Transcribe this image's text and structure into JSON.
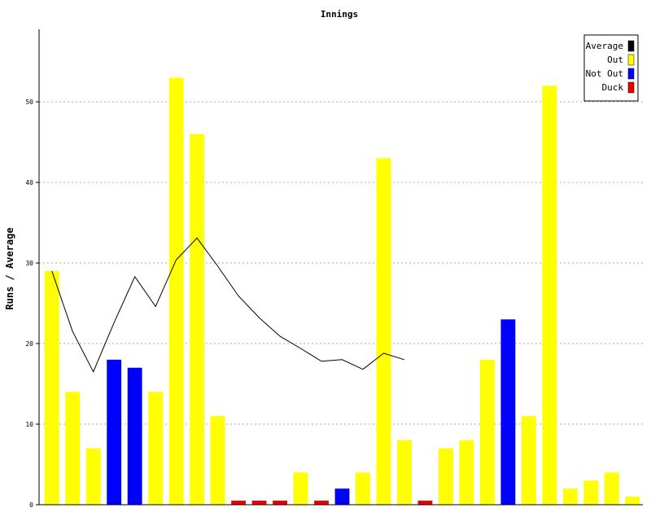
{
  "chart_data": {
    "type": "bar",
    "title": "Innings",
    "xlabel": "",
    "ylabel": "Runs / Average",
    "ylim": [
      0,
      59
    ],
    "yticks": [
      0,
      10,
      20,
      30,
      40,
      50
    ],
    "grid": "horizontal dotted",
    "legend_position": "top-right",
    "legend": [
      {
        "name": "Average",
        "color": "#000000"
      },
      {
        "name": "Out",
        "color": "#ffff00"
      },
      {
        "name": "Not Out",
        "color": "#0000ff"
      },
      {
        "name": "Duck",
        "color": "#ee0000"
      }
    ],
    "innings": [
      {
        "runs": 29,
        "status": "Out"
      },
      {
        "runs": 14,
        "status": "Out"
      },
      {
        "runs": 7,
        "status": "Out"
      },
      {
        "runs": 18,
        "status": "Not Out"
      },
      {
        "runs": 17,
        "status": "Not Out"
      },
      {
        "runs": 14,
        "status": "Out"
      },
      {
        "runs": 53,
        "status": "Out"
      },
      {
        "runs": 46,
        "status": "Out"
      },
      {
        "runs": 11,
        "status": "Out"
      },
      {
        "runs": 0,
        "status": "Duck"
      },
      {
        "runs": 0,
        "status": "Duck"
      },
      {
        "runs": 0,
        "status": "Duck"
      },
      {
        "runs": 4,
        "status": "Out"
      },
      {
        "runs": 0,
        "status": "Duck"
      },
      {
        "runs": 2,
        "status": "Not Out"
      },
      {
        "runs": 4,
        "status": "Out"
      },
      {
        "runs": 43,
        "status": "Out"
      },
      {
        "runs": 8,
        "status": "Out"
      },
      {
        "runs": 0,
        "status": "Duck"
      },
      {
        "runs": 7,
        "status": "Out"
      },
      {
        "runs": 8,
        "status": "Out"
      },
      {
        "runs": 18,
        "status": "Out"
      },
      {
        "runs": 23,
        "status": "Not Out"
      },
      {
        "runs": 11,
        "status": "Out"
      },
      {
        "runs": 52,
        "status": "Out"
      },
      {
        "runs": 2,
        "status": "Out"
      },
      {
        "runs": 3,
        "status": "Out"
      },
      {
        "runs": 4,
        "status": "Out"
      },
      {
        "runs": 1,
        "status": "Out"
      }
    ],
    "average_line": [
      29,
      21.5,
      16.5,
      22.6,
      28.3,
      24.6,
      30.4,
      33.1,
      29.6,
      25.9,
      23.2,
      20.9,
      19.4,
      17.8,
      18,
      16.8,
      18.8,
      18
    ]
  }
}
